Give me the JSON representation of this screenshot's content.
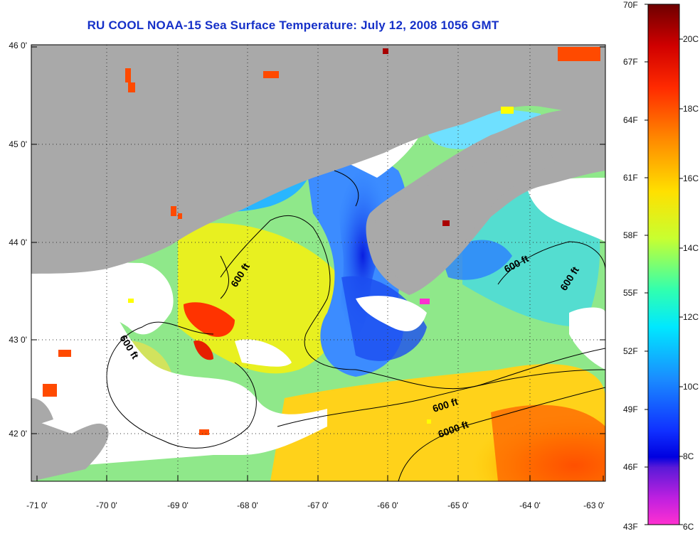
{
  "title": "RU COOL  NOAA-15  Sea Surface Temperature:  July 12, 2008 1056 GMT",
  "lat_ticks": [
    "46 0'",
    "45 0'",
    "44 0'",
    "43 0'",
    "42 0'"
  ],
  "lon_ticks": [
    "-71 0'",
    "-70 0'",
    "-69 0'",
    "-68 0'",
    "-67 0'",
    "-66 0'",
    "-65 0'",
    "-64 0'",
    "-63 0'"
  ],
  "contour_labels": [
    "600 ft",
    "600 ft",
    "600 ft",
    "600 ft",
    "600 ft",
    "6000 ft"
  ],
  "colorbar": {
    "fahrenheit": [
      "70F",
      "67F",
      "64F",
      "61F",
      "58F",
      "55F",
      "52F",
      "49F",
      "46F",
      "43F"
    ],
    "celsius": [
      "20C",
      "18C",
      "16C",
      "14C",
      "12C",
      "10C",
      "8C",
      "6C"
    ]
  },
  "colors": {
    "land": "#a9a9a9",
    "no_data": "#ffffff",
    "title": "#1530c8"
  }
}
